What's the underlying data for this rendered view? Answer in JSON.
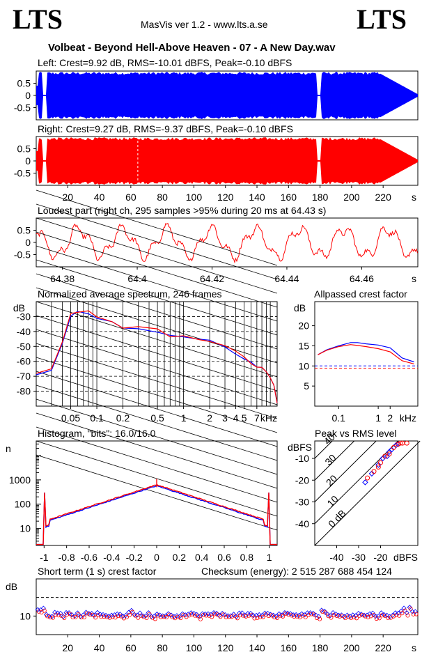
{
  "header": {
    "logo_left": "LTS",
    "logo_right": "LTS",
    "app_title": "MasVis ver 1.2 - www.lts.a.se",
    "file_title": "Volbeat - Beyond Hell-Above Heaven - 07 - A New Day.wav"
  },
  "colors": {
    "left": "#0000ff",
    "right": "#ff0000"
  },
  "chart_data": [
    {
      "type": "area",
      "title": "Left: Crest=9.92 dB, RMS=-10.01 dBFS, Peak=-0.10 dBFS",
      "channel": "left",
      "yticks": [
        "0.5",
        "0",
        "-0.5"
      ],
      "ylim": [
        -1,
        1
      ],
      "xlim": [
        0,
        242
      ],
      "gaps_s": [
        [
          4,
          7
        ],
        [
          178,
          181
        ]
      ]
    },
    {
      "type": "area",
      "title": "Right: Crest=9.27 dB, RMS=-9.37 dBFS, Peak=-0.10 dBFS",
      "channel": "right",
      "yticks": [
        "0.5",
        "0",
        "-0.5"
      ],
      "ylim": [
        -1,
        1
      ],
      "xlim": [
        0,
        242
      ],
      "xticks": [
        20,
        40,
        60,
        80,
        100,
        120,
        140,
        160,
        180,
        200,
        220
      ],
      "xunit": "s",
      "marker_s": 64.43
    },
    {
      "type": "line",
      "title": "Loudest part (right ch, 295 samples >95% during 20 ms at 64.43 s)",
      "yticks": [
        "0.5",
        "0",
        "-0.5"
      ],
      "ylim": [
        -1,
        1
      ],
      "xlim": [
        64.373,
        64.475
      ],
      "xticks": [
        "64.38",
        "64.4",
        "64.42",
        "64.44",
        "64.46"
      ],
      "xunit": "s"
    },
    {
      "type": "line",
      "title": "Normalized average spectrum, 246 frames",
      "ylabel": "dB",
      "yticks": [
        "-30",
        "-40",
        "-50",
        "-60",
        "-70",
        "-80"
      ],
      "ylim": [
        -90,
        -20
      ],
      "xticks": [
        "0.05",
        "0.1",
        "0.2",
        "0.5",
        "1",
        "2",
        "3",
        "4",
        "5",
        "7"
      ],
      "xunit": "kHz",
      "xscale": "log",
      "xlim_khz": [
        0.02,
        12
      ],
      "series": [
        {
          "channel": "left",
          "x_khz": [
            0.02,
            0.03,
            0.04,
            0.05,
            0.06,
            0.08,
            0.1,
            0.15,
            0.2,
            0.3,
            0.5,
            0.7,
            1,
            1.5,
            2,
            3,
            4,
            5,
            6,
            7,
            8,
            9,
            10,
            11,
            12
          ],
          "y_db": [
            -69,
            -66,
            -48,
            -30,
            -27,
            -29,
            -33,
            -35,
            -37,
            -38,
            -40,
            -43,
            -44,
            -47,
            -47,
            -50,
            -54,
            -58,
            -61,
            -62,
            -64,
            -67,
            -71,
            -76,
            -88
          ]
        },
        {
          "channel": "right",
          "x_khz": [
            0.02,
            0.03,
            0.04,
            0.05,
            0.06,
            0.08,
            0.1,
            0.15,
            0.2,
            0.3,
            0.5,
            0.7,
            1,
            1.5,
            2,
            3,
            4,
            5,
            6,
            7,
            8,
            9,
            10,
            11,
            12
          ],
          "y_db": [
            -68,
            -65,
            -47,
            -29,
            -26,
            -28,
            -32,
            -34,
            -36,
            -38,
            -40,
            -42,
            -43,
            -46,
            -47,
            -49,
            -53,
            -57,
            -60,
            -62,
            -64,
            -67,
            -71,
            -76,
            -88
          ]
        }
      ]
    },
    {
      "type": "line",
      "title": "Allpassed crest factor",
      "ylabel": "dB",
      "yticks": [
        20,
        15,
        10,
        5
      ],
      "ylim": [
        0,
        26
      ],
      "xticks": [
        "0.1",
        "1",
        "2",
        "kHz"
      ],
      "xscale": "log",
      "series": [
        {
          "channel": "left",
          "x_khz": [
            0.03,
            0.05,
            0.1,
            0.2,
            0.3,
            0.5,
            1,
            2,
            4,
            8
          ],
          "y_db": [
            12.8,
            14,
            15,
            15.8,
            15.8,
            15.5,
            15.2,
            14.5,
            12,
            11
          ]
        },
        {
          "channel": "right",
          "x_khz": [
            0.03,
            0.05,
            0.1,
            0.2,
            0.3,
            0.5,
            1,
            2,
            4,
            8
          ],
          "y_db": [
            12.8,
            13.9,
            14.8,
            15.3,
            15.1,
            14.8,
            14.3,
            13.5,
            11.3,
            10.5
          ]
        }
      ],
      "reference_lines_db": [
        10,
        9.4
      ]
    },
    {
      "type": "line",
      "title": "Histogram, \"bits\": 16.0/16.0",
      "ylabel": "n",
      "yticks": [
        "1000",
        "100",
        "10"
      ],
      "yscale": "log",
      "xticks": [
        "-1",
        "-0.8",
        "-0.6",
        "-0.4",
        "-0.2",
        "0",
        "0.2",
        "0.4",
        "0.6",
        "0.8",
        "1"
      ],
      "xlim": [
        -1.07,
        1.07
      ]
    },
    {
      "type": "scatter",
      "title": "Peak vs RMS level",
      "ylabel": "dBFS",
      "xlabel": "dBFS",
      "yticks": [
        "-10",
        "-20",
        "-30",
        "-40"
      ],
      "xticks": [
        "-40",
        "-30",
        "-20"
      ],
      "diagonal_labels": [
        "40",
        "30",
        "20",
        "10",
        "0 dB"
      ],
      "xlim": [
        -50,
        -3
      ],
      "ylim": [
        -50,
        -2
      ],
      "series": [
        {
          "channel": "left",
          "points": [
            [
              -27,
              -21
            ],
            [
              -24,
              -17
            ],
            [
              -21,
              -13
            ],
            [
              -19,
              -10
            ],
            [
              -16,
              -7
            ],
            [
              -15,
              -6
            ],
            [
              -13,
              -4
            ],
            [
              -12,
              -3.5
            ],
            [
              -17,
              -9
            ]
          ]
        },
        {
          "channel": "right",
          "points": [
            [
              -26,
              -19
            ],
            [
              -23,
              -16
            ],
            [
              -21,
              -14
            ],
            [
              -20,
              -12
            ],
            [
              -18,
              -9
            ],
            [
              -16,
              -8
            ],
            [
              -14,
              -5
            ],
            [
              -12,
              -3.5
            ],
            [
              -11,
              -3
            ],
            [
              -10,
              -3
            ],
            [
              -8,
              -3
            ]
          ]
        }
      ]
    },
    {
      "type": "scatter",
      "title": "Short term (1 s) crest factor",
      "checksum_text": "Checksum (energy):  2 515 287 688 454 124",
      "ylabel": "dB",
      "yticks": [
        "10"
      ],
      "xticks": [
        20,
        40,
        60,
        80,
        100,
        120,
        140,
        160,
        180,
        200,
        220
      ],
      "xunit": "s",
      "xlim": [
        0,
        242
      ],
      "ylim": [
        4,
        22
      ],
      "dashed_ref_db": 16
    }
  ]
}
